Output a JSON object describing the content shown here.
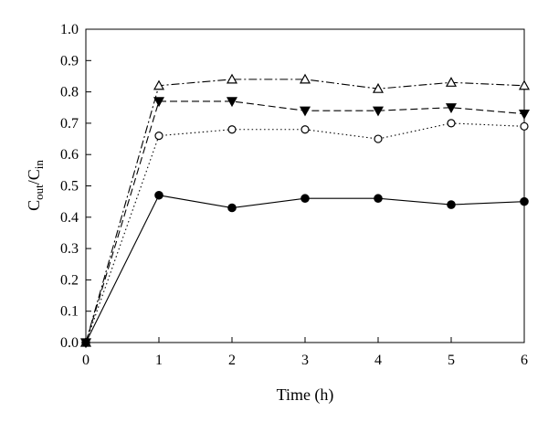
{
  "chart_data": {
    "type": "line",
    "title": "",
    "xlabel": "Time (h)",
    "ylabel": {
      "main_1": "C",
      "sub_1": "out",
      "slash": "/",
      "main_2": "C",
      "sub_2": "in"
    },
    "xlim": [
      0,
      6
    ],
    "ylim": [
      0,
      1.0
    ],
    "x_ticks": [
      "0",
      "1",
      "2",
      "3",
      "4",
      "5",
      "6"
    ],
    "y_ticks": [
      "0.0",
      "0.1",
      "0.2",
      "0.3",
      "0.4",
      "0.5",
      "0.6",
      "0.7",
      "0.8",
      "0.9",
      "1.0"
    ],
    "grid": false,
    "x": [
      0,
      1,
      2,
      3,
      4,
      5,
      6
    ],
    "series": [
      {
        "marker": "open-triangle",
        "line_style": "dash-dot",
        "values": [
          0.0,
          0.82,
          0.84,
          0.84,
          0.81,
          0.83,
          0.82
        ]
      },
      {
        "marker": "filled-inverted-triangle",
        "line_style": "dashed",
        "values": [
          0.0,
          0.77,
          0.77,
          0.74,
          0.74,
          0.75,
          0.73
        ]
      },
      {
        "marker": "open-circle",
        "line_style": "dotted",
        "values": [
          0.0,
          0.66,
          0.68,
          0.68,
          0.65,
          0.7,
          0.69
        ]
      },
      {
        "marker": "filled-circle",
        "line_style": "solid",
        "values": [
          0.0,
          0.47,
          0.43,
          0.46,
          0.46,
          0.44,
          0.45
        ]
      }
    ]
  }
}
